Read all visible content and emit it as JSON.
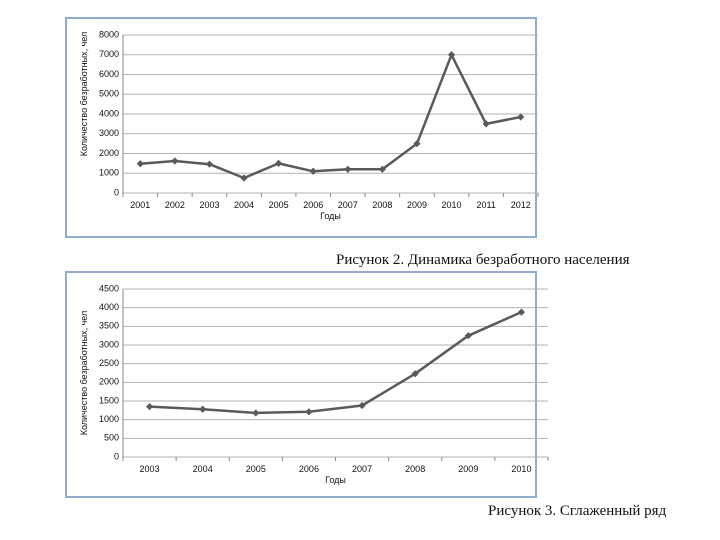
{
  "chart_data": [
    {
      "type": "line",
      "xlabel": "Годы",
      "ylabel": "Количество безработных, чел",
      "categories": [
        "2001",
        "2002",
        "2003",
        "2004",
        "2005",
        "2006",
        "2007",
        "2008",
        "2009",
        "2010",
        "2011",
        "2012"
      ],
      "series": [
        {
          "values": [
            1480,
            1620,
            1460,
            760,
            1500,
            1100,
            1200,
            1200,
            2500,
            7000,
            3500,
            3850
          ]
        }
      ],
      "ylim": [
        0,
        8000
      ],
      "yticks": [
        0,
        1000,
        2000,
        3000,
        4000,
        5000,
        6000,
        7000,
        8000
      ],
      "grid": true,
      "legend": "none",
      "colors": {
        "line": "#5a5a5a",
        "grid": "#b3b3b3"
      }
    },
    {
      "type": "line",
      "xlabel": "Годы",
      "ylabel": "Количество безработных, чел",
      "categories": [
        "2003",
        "2004",
        "2005",
        "2006",
        "2007",
        "2008",
        "2009",
        "2010"
      ],
      "series": [
        {
          "values": [
            1350,
            1280,
            1180,
            1210,
            1380,
            2230,
            3250,
            3880
          ]
        }
      ],
      "ylim": [
        0,
        4500
      ],
      "yticks": [
        0,
        500,
        1000,
        1500,
        2000,
        2500,
        3000,
        3500,
        4000,
        4500
      ],
      "grid": true,
      "legend": "none",
      "colors": {
        "line": "#5a5a5a",
        "grid": "#b3b3b3"
      }
    }
  ],
  "captions": {
    "figure2": "Рисунок 2. Динамика безработного населения",
    "figure3": "Рисунок 3. Сглаженный ряд"
  }
}
